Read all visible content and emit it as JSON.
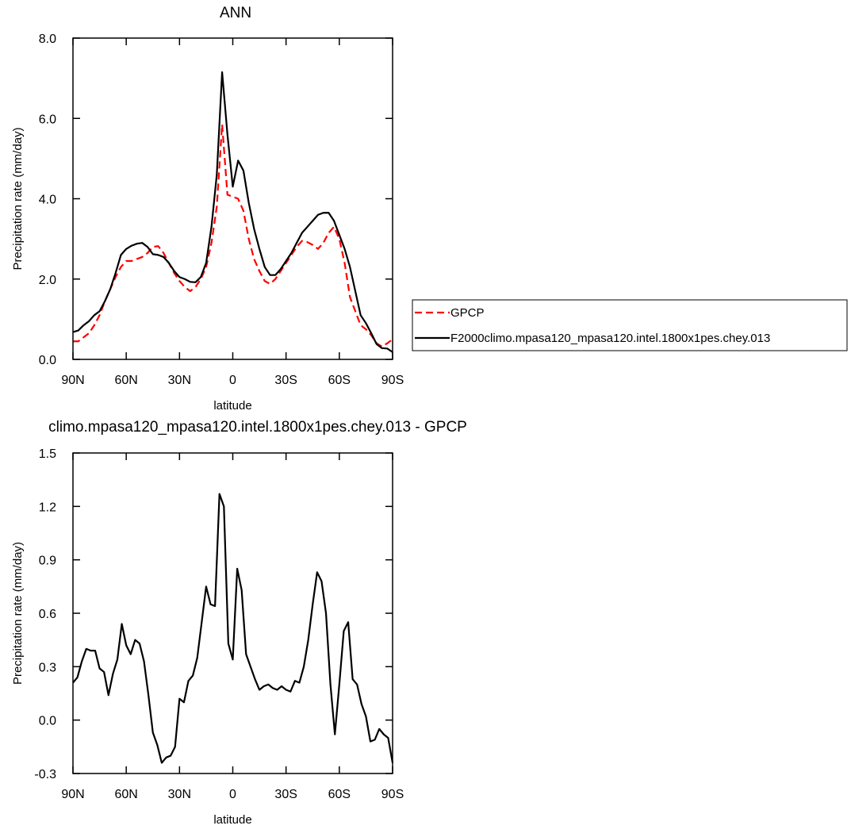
{
  "chart_data": [
    {
      "type": "line",
      "title": "ANN",
      "xlabel": "latitude",
      "ylabel": "Precipitation rate (mm/day)",
      "x": [
        90,
        87,
        84,
        81,
        78,
        75,
        72,
        69,
        66,
        63,
        60,
        57,
        54,
        51,
        48,
        45,
        42,
        39,
        36,
        33,
        30,
        27,
        24,
        21,
        18,
        15,
        12,
        9,
        6,
        3,
        0,
        -3,
        -6,
        -9,
        -12,
        -15,
        -18,
        -21,
        -24,
        -27,
        -30,
        -33,
        -36,
        -39,
        -42,
        -45,
        -48,
        -51,
        -54,
        -57,
        -60,
        -63,
        -66,
        -69,
        -72,
        -75,
        -78,
        -81,
        -84,
        -87,
        -90
      ],
      "series": [
        {
          "name": "GPCP",
          "color": "#ff0000",
          "dash": true,
          "values": [
            0.45,
            0.45,
            0.55,
            0.65,
            0.85,
            1.1,
            1.45,
            1.75,
            2.05,
            2.3,
            2.45,
            2.45,
            2.5,
            2.55,
            2.65,
            2.8,
            2.82,
            2.65,
            2.4,
            2.15,
            1.95,
            1.8,
            1.7,
            1.8,
            2.0,
            2.3,
            2.9,
            3.8,
            5.85,
            4.1,
            4.05,
            4.0,
            3.7,
            3.0,
            2.5,
            2.2,
            1.95,
            1.88,
            2.0,
            2.2,
            2.4,
            2.6,
            2.8,
            2.95,
            2.92,
            2.85,
            2.75,
            2.9,
            3.15,
            3.3,
            3.0,
            2.4,
            1.55,
            1.2,
            0.85,
            0.75,
            0.6,
            0.4,
            0.32,
            0.4,
            0.5
          ]
        },
        {
          "name": "F2000climo.mpasa120_mpasa120.intel.1800x1pes.chey.013",
          "color": "#000000",
          "dash": false,
          "values": [
            0.68,
            0.72,
            0.85,
            0.95,
            1.1,
            1.2,
            1.45,
            1.75,
            2.15,
            2.6,
            2.75,
            2.83,
            2.88,
            2.9,
            2.8,
            2.62,
            2.6,
            2.55,
            2.4,
            2.2,
            2.05,
            2.0,
            1.93,
            1.92,
            2.05,
            2.4,
            3.3,
            4.6,
            7.15,
            5.6,
            4.3,
            4.95,
            4.7,
            3.9,
            3.25,
            2.75,
            2.3,
            2.1,
            2.1,
            2.25,
            2.45,
            2.65,
            2.9,
            3.15,
            3.3,
            3.45,
            3.6,
            3.65,
            3.65,
            3.45,
            3.1,
            2.75,
            2.3,
            1.7,
            1.1,
            0.9,
            0.65,
            0.38,
            0.28,
            0.27,
            0.18
          ]
        }
      ],
      "xlim": [
        90,
        -90
      ],
      "xticks": [
        {
          "value": 90,
          "label": "90N"
        },
        {
          "value": 60,
          "label": "60N"
        },
        {
          "value": 30,
          "label": "30N"
        },
        0,
        {
          "value": -30,
          "label": "30S"
        },
        {
          "value": -60,
          "label": "60S"
        },
        {
          "value": -90,
          "label": "90S"
        }
      ],
      "ylim": [
        0,
        8
      ],
      "yticks": [
        {
          "value": 0,
          "label": "0.0"
        },
        {
          "value": 2,
          "label": "2.0"
        },
        {
          "value": 4,
          "label": "4.0"
        },
        {
          "value": 6,
          "label": "6.0"
        },
        {
          "value": 8,
          "label": "8.0"
        }
      ],
      "legend": "right"
    },
    {
      "type": "line",
      "title": "climo.mpasa120_mpasa120.intel.1800x1pes.chey.013 - GPCP",
      "xlabel": "latitude",
      "ylabel": "Precipitation rate (mm/day)",
      "x": [
        90,
        87.5,
        85,
        82.5,
        80,
        77.5,
        75,
        72.5,
        70,
        67.5,
        65,
        62.5,
        60,
        57.5,
        55,
        52.5,
        50,
        47.5,
        45,
        42.5,
        40,
        37.5,
        35,
        32.5,
        30,
        27.5,
        25,
        22.5,
        20,
        17.5,
        15,
        12.5,
        10,
        7.5,
        5,
        2.5,
        0,
        -2.5,
        -5,
        -7.5,
        -10,
        -12.5,
        -15,
        -17.5,
        -20,
        -22.5,
        -25,
        -27.5,
        -30,
        -32.5,
        -35,
        -37.5,
        -40,
        -42.5,
        -45,
        -47.5,
        -50,
        -52.5,
        -55,
        -57.5,
        -60,
        -62.5,
        -65,
        -67.5,
        -70,
        -72.5,
        -75,
        -77.5,
        -80,
        -82.5,
        -85,
        -87.5,
        -90
      ],
      "values": [
        0.21,
        0.24,
        0.33,
        0.4,
        0.39,
        0.39,
        0.29,
        0.27,
        0.14,
        0.26,
        0.34,
        0.54,
        0.42,
        0.37,
        0.45,
        0.43,
        0.33,
        0.14,
        -0.07,
        -0.14,
        -0.24,
        -0.21,
        -0.2,
        -0.15,
        0.12,
        0.1,
        0.22,
        0.25,
        0.35,
        0.55,
        0.75,
        0.65,
        0.64,
        1.27,
        1.2,
        0.43,
        0.34,
        0.85,
        0.73,
        0.37,
        0.3,
        0.23,
        0.17,
        0.19,
        0.2,
        0.18,
        0.17,
        0.19,
        0.17,
        0.16,
        0.22,
        0.21,
        0.3,
        0.45,
        0.65,
        0.83,
        0.78,
        0.6,
        0.2,
        -0.08,
        0.2,
        0.5,
        0.55,
        0.23,
        0.2,
        0.09,
        0.02,
        -0.12,
        -0.11,
        -0.05,
        -0.08,
        -0.1,
        -0.24
      ],
      "color": "#000000",
      "xlim": [
        90,
        -90
      ],
      "xticks": [
        {
          "value": 90,
          "label": "90N"
        },
        {
          "value": 60,
          "label": "60N"
        },
        {
          "value": 30,
          "label": "30N"
        },
        0,
        {
          "value": -30,
          "label": "30S"
        },
        {
          "value": -60,
          "label": "60S"
        },
        {
          "value": -90,
          "label": "90S"
        }
      ],
      "ylim": [
        -0.3,
        1.5
      ],
      "yticks": [
        -0.3,
        {
          "value": 0,
          "label": "0.0"
        },
        0.3,
        0.6,
        0.9,
        1.2,
        1.5
      ]
    }
  ]
}
